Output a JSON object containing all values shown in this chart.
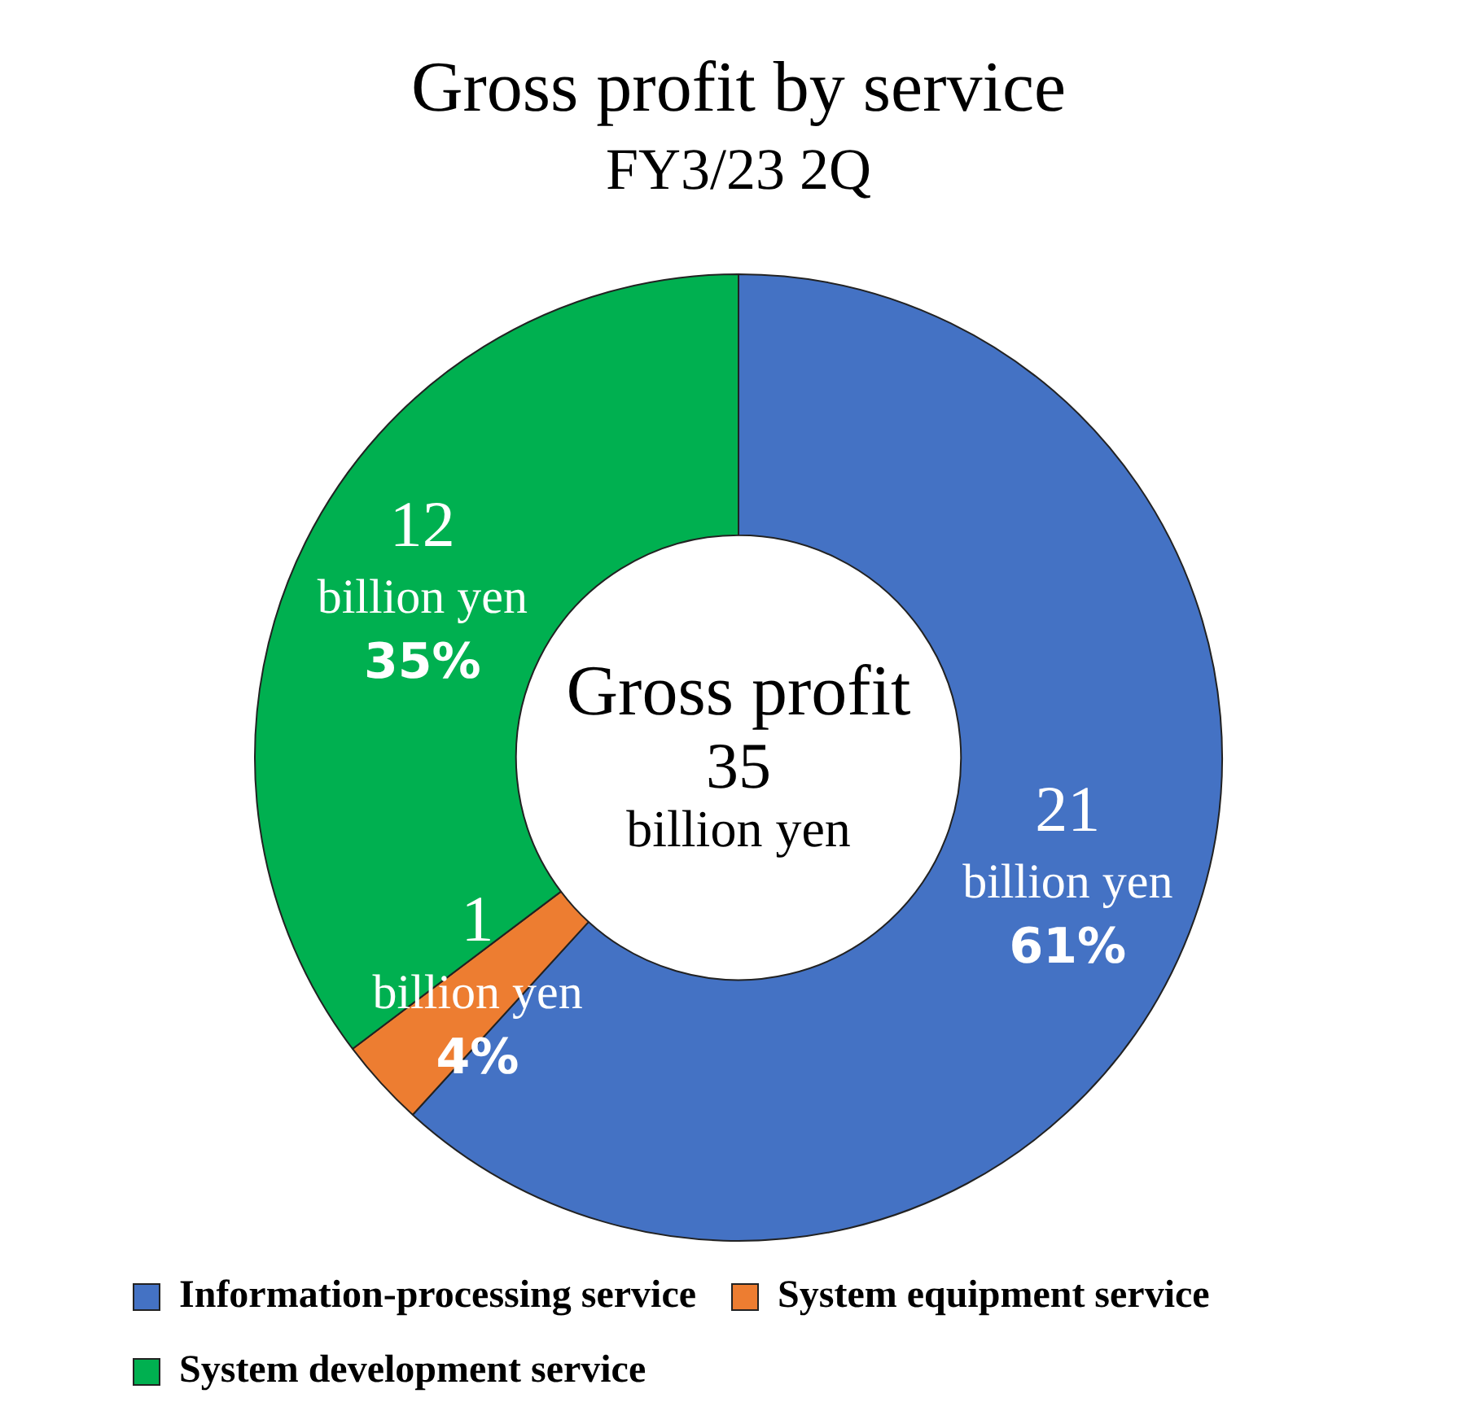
{
  "chart_data": {
    "type": "donut",
    "title": "Gross profit by service",
    "subtitle": "FY3/23 2Q",
    "categories": [
      "Information-processing service",
      "System equipment service",
      "System development service"
    ],
    "values": [
      21,
      1,
      12
    ],
    "colors": [
      "#4472c4",
      "#ed7d31",
      "#00b050"
    ],
    "value_labels": [
      "21\nbillion yen\n61%",
      "1\nbillion yen\n4%",
      "12\nbillion yen\n35%"
    ],
    "annotations": [
      "Gross profit\n35\nbillion yen"
    ],
    "legend": "bottom"
  }
}
